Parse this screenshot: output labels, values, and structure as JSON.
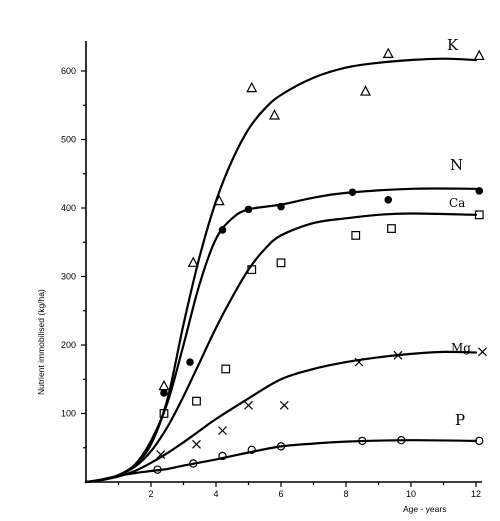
{
  "chart_data": {
    "type": "line",
    "xlabel": "Age - years",
    "ylabel": "Nutrient immobilised (kg/ha)",
    "xlim": [
      0,
      12.2
    ],
    "ylim": [
      0,
      660
    ],
    "x_ticks": [
      "2",
      "4",
      "6",
      "8",
      "10",
      "12"
    ],
    "y_ticks": [
      "100",
      "200",
      "300",
      "400",
      "500",
      "600"
    ],
    "x_tick_values": [
      2,
      4,
      6,
      8,
      10,
      12
    ],
    "y_tick_values": [
      100,
      200,
      300,
      400,
      500,
      600
    ],
    "grid": false,
    "series": [
      {
        "name": "K",
        "marker": "triangle",
        "curve": [
          [
            0,
            0
          ],
          [
            0.5,
            3
          ],
          [
            1,
            10
          ],
          [
            1.5,
            25
          ],
          [
            2,
            55
          ],
          [
            2.5,
            120
          ],
          [
            3,
            230
          ],
          [
            3.5,
            330
          ],
          [
            4,
            410
          ],
          [
            4.5,
            470
          ],
          [
            5,
            515
          ],
          [
            5.5,
            545
          ],
          [
            6,
            565
          ],
          [
            7,
            590
          ],
          [
            8,
            605
          ],
          [
            9,
            612
          ],
          [
            10,
            616
          ],
          [
            11,
            618
          ],
          [
            12,
            616
          ]
        ],
        "points": [
          [
            2.4,
            140
          ],
          [
            3.3,
            320
          ],
          [
            4.1,
            410
          ],
          [
            5.1,
            575
          ],
          [
            5.8,
            535
          ],
          [
            8.6,
            570
          ],
          [
            9.3,
            625
          ],
          [
            12.1,
            622
          ]
        ]
      },
      {
        "name": "N",
        "marker": "filled-circle",
        "curve": [
          [
            0,
            0
          ],
          [
            0.5,
            3
          ],
          [
            1,
            10
          ],
          [
            1.5,
            25
          ],
          [
            2,
            60
          ],
          [
            2.5,
            115
          ],
          [
            3,
            200
          ],
          [
            3.5,
            290
          ],
          [
            4,
            355
          ],
          [
            4.5,
            385
          ],
          [
            5,
            398
          ],
          [
            6,
            405
          ],
          [
            7,
            415
          ],
          [
            8,
            422
          ],
          [
            10,
            428
          ],
          [
            12,
            428
          ]
        ],
        "points": [
          [
            2.4,
            130
          ],
          [
            3.2,
            175
          ],
          [
            4.2,
            368
          ],
          [
            5,
            398
          ],
          [
            6,
            402
          ],
          [
            8.2,
            423
          ],
          [
            9.3,
            412
          ],
          [
            12.1,
            425
          ]
        ]
      },
      {
        "name": "Ca",
        "marker": "square",
        "curve": [
          [
            0,
            0
          ],
          [
            0.5,
            3
          ],
          [
            1,
            10
          ],
          [
            1.5,
            22
          ],
          [
            2,
            45
          ],
          [
            2.5,
            80
          ],
          [
            3,
            125
          ],
          [
            3.5,
            175
          ],
          [
            4,
            225
          ],
          [
            4.5,
            270
          ],
          [
            5,
            310
          ],
          [
            5.5,
            340
          ],
          [
            6,
            360
          ],
          [
            7,
            378
          ],
          [
            8,
            385
          ],
          [
            9,
            390
          ],
          [
            10,
            392
          ],
          [
            12,
            390
          ]
        ],
        "points": [
          [
            2.4,
            100
          ],
          [
            3.4,
            118
          ],
          [
            4.3,
            165
          ],
          [
            5.1,
            310
          ],
          [
            6,
            320
          ],
          [
            8.3,
            360
          ],
          [
            9.4,
            370
          ],
          [
            12.1,
            390
          ]
        ]
      },
      {
        "name": "Mg",
        "marker": "cross",
        "curve": [
          [
            0,
            0
          ],
          [
            0.5,
            3
          ],
          [
            1,
            8
          ],
          [
            1.5,
            16
          ],
          [
            2,
            28
          ],
          [
            2.5,
            42
          ],
          [
            3,
            58
          ],
          [
            3.5,
            75
          ],
          [
            4,
            92
          ],
          [
            5,
            122
          ],
          [
            6,
            150
          ],
          [
            7,
            165
          ],
          [
            8,
            175
          ],
          [
            9,
            182
          ],
          [
            10,
            187
          ],
          [
            11,
            190
          ],
          [
            12,
            189
          ]
        ],
        "points": [
          [
            2.3,
            40
          ],
          [
            3.4,
            55
          ],
          [
            4.2,
            75
          ],
          [
            5,
            112
          ],
          [
            6.1,
            112
          ],
          [
            8.4,
            175
          ],
          [
            9.6,
            185
          ],
          [
            12.2,
            190
          ]
        ]
      },
      {
        "name": "P",
        "marker": "open-circle",
        "curve": [
          [
            0,
            0
          ],
          [
            0.5,
            4
          ],
          [
            1,
            9
          ],
          [
            1.5,
            13
          ],
          [
            2,
            16
          ],
          [
            2.5,
            19
          ],
          [
            3,
            24
          ],
          [
            4,
            33
          ],
          [
            5,
            43
          ],
          [
            6,
            52
          ],
          [
            7,
            56
          ],
          [
            8,
            59
          ],
          [
            10,
            61
          ],
          [
            12,
            60
          ]
        ],
        "points": [
          [
            2.2,
            18
          ],
          [
            3.3,
            27
          ],
          [
            4.2,
            38
          ],
          [
            5.1,
            47
          ],
          [
            6,
            52
          ],
          [
            8.5,
            60
          ],
          [
            9.7,
            61
          ],
          [
            12.1,
            60
          ]
        ]
      }
    ],
    "labels": {
      "K": {
        "name": "K",
        "x": 11.6,
        "y": 640
      },
      "K2": {
        "name": "K",
        "x": 11.6,
        "y": 640
      }
    }
  }
}
